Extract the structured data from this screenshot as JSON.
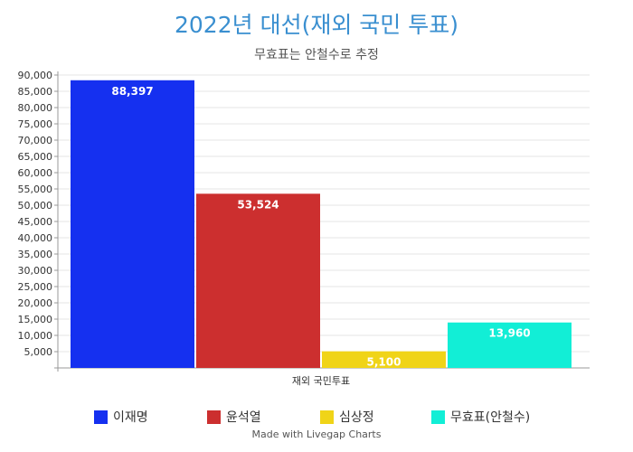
{
  "chart_data": {
    "type": "bar",
    "title": "2022년 대선(재외 국민 투표)",
    "subtitle": "무효표는 안철수로 추정",
    "categories": [
      "재외 국민투표"
    ],
    "series": [
      {
        "name": "이재명",
        "values": [
          88397
        ],
        "label": "88,397",
        "color": "#1530f0"
      },
      {
        "name": "윤석열",
        "values": [
          53524
        ],
        "label": "53,524",
        "color": "#cc2f2f"
      },
      {
        "name": "심상정",
        "values": [
          5100
        ],
        "label": "5,100",
        "color": "#f0d418"
      },
      {
        "name": "무효표(안철수)",
        "values": [
          13960
        ],
        "label": "13,960",
        "color": "#12eed6"
      }
    ],
    "ylim": [
      0,
      90000
    ],
    "yticks": [
      "5,000",
      "10,000",
      "15,000",
      "20,000",
      "25,000",
      "30,000",
      "35,000",
      "40,000",
      "45,000",
      "50,000",
      "55,000",
      "60,000",
      "65,000",
      "70,000",
      "75,000",
      "80,000",
      "85,000",
      "90,000"
    ],
    "grid": true,
    "legend": "bottom"
  },
  "credit": "Made with Livegap Charts"
}
